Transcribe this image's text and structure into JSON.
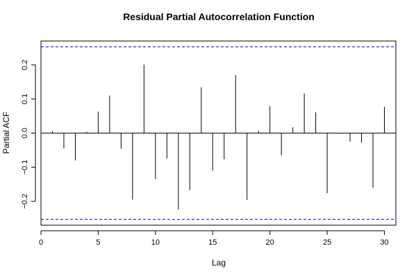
{
  "chart_data": {
    "type": "bar",
    "title": "Residual Partial Autocorrelation Function",
    "xlabel": "Lag",
    "ylabel": "Partial ACF",
    "xlim": [
      0,
      31
    ],
    "ylim": [
      -0.27,
      0.27
    ],
    "xticks": [
      0,
      5,
      10,
      15,
      20,
      25,
      30
    ],
    "yticks": [
      -0.2,
      -0.1,
      0.0,
      0.1,
      0.2
    ],
    "ytick_labels": [
      "−0.2",
      "−0.1",
      "0.0",
      "0.1",
      "0.2"
    ],
    "confidence_band": 0.253,
    "band_color": "#0000cc",
    "bar_color": "#000000",
    "lags": [
      1,
      2,
      3,
      4,
      5,
      6,
      7,
      8,
      9,
      10,
      11,
      12,
      13,
      14,
      15,
      16,
      17,
      18,
      19,
      20,
      21,
      22,
      23,
      24,
      25,
      26,
      27,
      28,
      29,
      30
    ],
    "values": [
      0.006,
      -0.045,
      -0.08,
      0.004,
      0.063,
      0.11,
      -0.046,
      -0.195,
      0.201,
      -0.135,
      -0.074,
      -0.224,
      -0.167,
      0.134,
      -0.11,
      -0.077,
      0.17,
      -0.196,
      0.007,
      0.079,
      -0.065,
      0.017,
      0.117,
      0.061,
      -0.176,
      -0.002,
      -0.025,
      -0.028,
      -0.16,
      0.077
    ]
  }
}
